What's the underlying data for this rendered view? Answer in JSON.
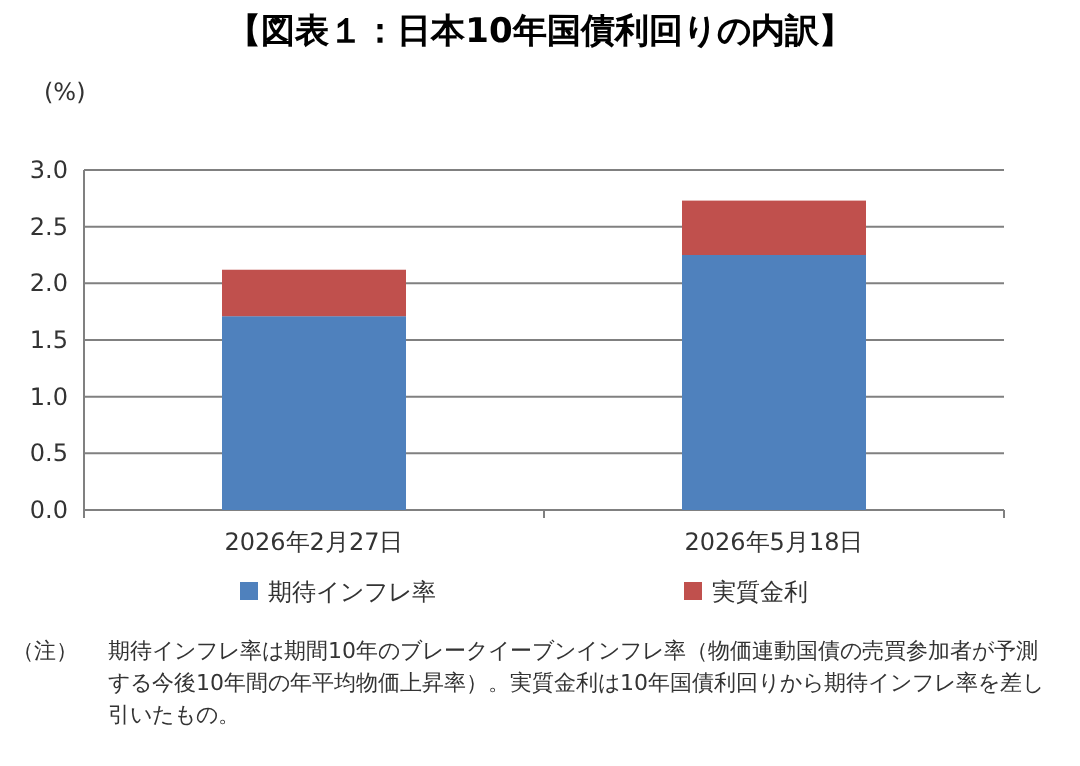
{
  "chart_data": {
    "type": "bar",
    "title": "【図表１：日本10年国債利回りの内訳】",
    "ylabel": "(%)",
    "categories": [
      "2026年2月27日",
      "2026年5月18日"
    ],
    "series": [
      {
        "name": "期待インフレ率",
        "color": "#4f81bd",
        "values": [
          1.71,
          2.25
        ]
      },
      {
        "name": "実質金利",
        "color": "#c0504d",
        "values": [
          0.41,
          0.48
        ]
      }
    ],
    "stacked": true,
    "ylim": [
      0,
      3
    ],
    "yticks": [
      {
        "value": 0,
        "label": "0.0"
      },
      {
        "value": 0.5,
        "label": "0.5"
      },
      {
        "value": 1,
        "label": "1.0"
      },
      {
        "value": 1.5,
        "label": "1.5"
      },
      {
        "value": 2,
        "label": "2.0"
      },
      {
        "value": 2.5,
        "label": "2.5"
      },
      {
        "value": 3,
        "label": "3.0"
      }
    ],
    "grid": "y",
    "legend": "bottom",
    "annotations": [
      "（注）　期待インフレ率は期間10年のブレークイーブンインフレ率（物価連動国債の売買参加者が予測する今後10年間の年平均物価上昇率）。実質金利は10年国債利回りから期待インフレ率を差し引いたもの。"
    ]
  }
}
